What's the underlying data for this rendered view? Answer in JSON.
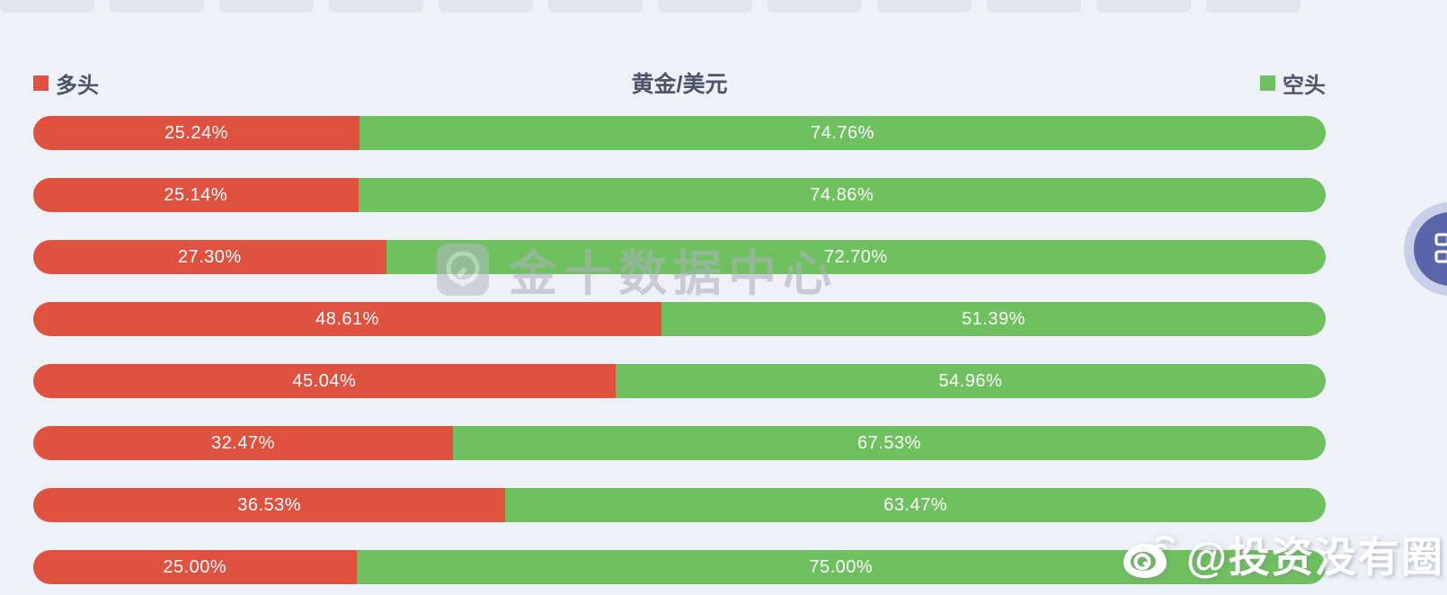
{
  "page": {
    "background_color": "#eef1f8"
  },
  "top_tabs": {
    "count": 12
  },
  "chart_data": {
    "type": "bar",
    "orientation": "horizontal-stacked",
    "title": "黄金/美元",
    "value_format": "percent",
    "xlim": [
      0,
      100
    ],
    "legend": [
      {
        "label": "多头",
        "color": "#e05240",
        "position": "left"
      },
      {
        "label": "空头",
        "color": "#6ec15e",
        "position": "right"
      }
    ],
    "rows": [
      {
        "long": 25.24,
        "short": 74.76,
        "long_label": "25.24%",
        "short_label": "74.76%"
      },
      {
        "long": 25.14,
        "short": 74.86,
        "long_label": "25.14%",
        "short_label": "74.86%"
      },
      {
        "long": 27.3,
        "short": 72.7,
        "long_label": "27.30%",
        "short_label": "72.70%"
      },
      {
        "long": 48.61,
        "short": 51.39,
        "long_label": "48.61%",
        "short_label": "51.39%"
      },
      {
        "long": 45.04,
        "short": 54.96,
        "long_label": "45.04%",
        "short_label": "54.96%"
      },
      {
        "long": 32.47,
        "short": 67.53,
        "long_label": "32.47%",
        "short_label": "67.53%"
      },
      {
        "long": 36.53,
        "short": 63.47,
        "long_label": "36.53%",
        "short_label": "63.47%"
      },
      {
        "long": 25.0,
        "short": 75.0,
        "long_label": "25.00%",
        "short_label": "75.00%"
      }
    ]
  },
  "watermark_center": {
    "icon": "jin10-logo",
    "text": "金十数据中心"
  },
  "watermark_bottom_right": {
    "icon": "weibo-icon",
    "text": "@投资没有圈"
  },
  "floating_button": {
    "icon": "apps-grid-icon"
  }
}
